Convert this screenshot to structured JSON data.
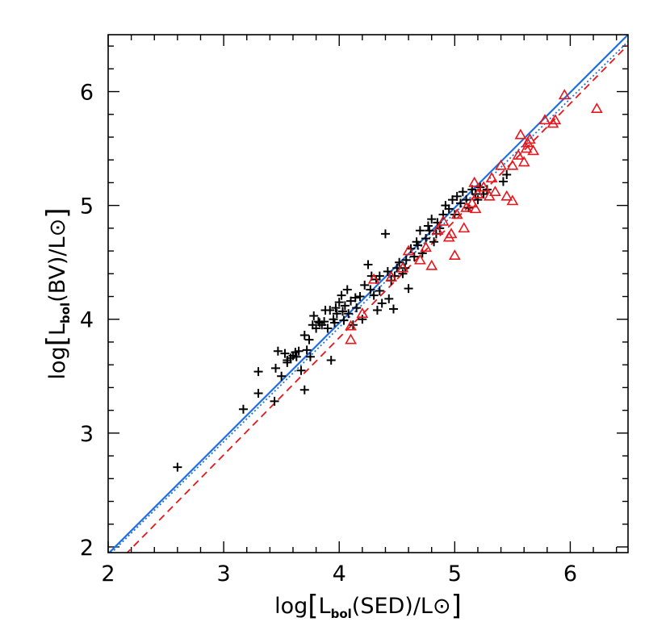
{
  "chart_data": {
    "type": "scatter",
    "xlim": [
      2,
      6.5
    ],
    "ylim": [
      1.95,
      6.5
    ],
    "x_ticks": [
      "2",
      "3",
      "4",
      "5",
      "6"
    ],
    "y_ticks": [
      "2",
      "3",
      "4",
      "5",
      "6"
    ],
    "xlabel": {
      "prefix": "log",
      "L": "L",
      "sub": "bol",
      "mid": "(SED)/L",
      "sun": "⊙"
    },
    "ylabel": {
      "prefix": "log",
      "L": "L",
      "sub": "bol",
      "mid": "(BV)/L",
      "sun": "⊙"
    },
    "grid": false,
    "colors": {
      "series_black": "#000000",
      "series_red": "#e8161c",
      "fit_blue": "#1f6fe0",
      "fit_red": "#e8161c"
    },
    "series": [
      {
        "marker": "plus",
        "color": "#000000",
        "points": [
          [
            2.6,
            2.7
          ],
          [
            3.17,
            3.21
          ],
          [
            3.3,
            3.35
          ],
          [
            3.3,
            3.54
          ],
          [
            3.44,
            3.28
          ],
          [
            3.45,
            3.57
          ],
          [
            3.47,
            3.72
          ],
          [
            3.5,
            3.5
          ],
          [
            3.53,
            3.7
          ],
          [
            3.55,
            3.64
          ],
          [
            3.58,
            3.66
          ],
          [
            3.6,
            3.68
          ],
          [
            3.62,
            3.71
          ],
          [
            3.65,
            3.72
          ],
          [
            3.67,
            3.55
          ],
          [
            3.7,
            3.38
          ],
          [
            3.7,
            3.86
          ],
          [
            3.72,
            3.73
          ],
          [
            3.75,
            3.67
          ],
          [
            3.77,
            3.95
          ],
          [
            3.78,
            4.03
          ],
          [
            3.8,
            3.92
          ],
          [
            3.83,
            3.97
          ],
          [
            3.85,
            3.95
          ],
          [
            3.87,
            3.98
          ],
          [
            3.9,
            3.92
          ],
          [
            3.92,
            4.08
          ],
          [
            3.93,
            3.64
          ],
          [
            3.95,
            4.0
          ],
          [
            3.97,
            4.1
          ],
          [
            3.98,
            4.05
          ],
          [
            4.0,
            4.15
          ],
          [
            4.02,
            4.21
          ],
          [
            4.03,
            4.07
          ],
          [
            4.05,
            4.12
          ],
          [
            4.07,
            4.26
          ],
          [
            4.08,
            4.05
          ],
          [
            4.1,
            4.16
          ],
          [
            4.12,
            3.95
          ],
          [
            4.15,
            4.1
          ],
          [
            4.18,
            4.2
          ],
          [
            4.2,
            4.0
          ],
          [
            4.22,
            4.3
          ],
          [
            4.25,
            4.48
          ],
          [
            4.27,
            4.26
          ],
          [
            4.3,
            4.21
          ],
          [
            4.32,
            4.35
          ],
          [
            4.33,
            4.08
          ],
          [
            4.35,
            4.38
          ],
          [
            4.37,
            4.14
          ],
          [
            4.4,
            4.75
          ],
          [
            4.42,
            4.42
          ],
          [
            4.43,
            4.18
          ],
          [
            4.45,
            4.34
          ],
          [
            4.47,
            4.09
          ],
          [
            4.5,
            4.45
          ],
          [
            4.52,
            4.5
          ],
          [
            4.55,
            4.4
          ],
          [
            4.58,
            4.52
          ],
          [
            4.6,
            4.27
          ],
          [
            4.62,
            4.62
          ],
          [
            4.65,
            4.55
          ],
          [
            4.67,
            4.68
          ],
          [
            4.7,
            4.78
          ],
          [
            4.72,
            4.58
          ],
          [
            4.75,
            4.71
          ],
          [
            4.77,
            4.82
          ],
          [
            4.8,
            4.88
          ],
          [
            4.82,
            4.68
          ],
          [
            4.85,
            4.85
          ],
          [
            4.87,
            4.8
          ],
          [
            4.9,
            4.92
          ],
          [
            4.92,
            5.0
          ],
          [
            4.95,
            4.97
          ],
          [
            4.98,
            5.05
          ],
          [
            5.0,
            4.92
          ],
          [
            5.02,
            5.08
          ],
          [
            5.05,
            5.02
          ],
          [
            5.07,
            5.12
          ],
          [
            5.1,
            5.05
          ],
          [
            5.12,
            4.98
          ],
          [
            5.15,
            5.14
          ],
          [
            5.18,
            5.1
          ],
          [
            5.2,
            5.05
          ],
          [
            5.22,
            5.16
          ],
          [
            5.25,
            5.1
          ],
          [
            5.28,
            5.14
          ],
          [
            5.42,
            5.21
          ],
          [
            5.45,
            5.27
          ],
          [
            3.55,
            3.62
          ],
          [
            3.63,
            3.67
          ],
          [
            3.74,
            3.82
          ],
          [
            3.82,
            3.98
          ],
          [
            3.88,
            4.08
          ],
          [
            3.96,
            3.97
          ],
          [
            4.04,
            3.99
          ],
          [
            4.14,
            4.19
          ],
          [
            4.28,
            4.38
          ],
          [
            4.35,
            4.25
          ],
          [
            4.48,
            4.38
          ],
          [
            4.57,
            4.45
          ],
          [
            4.68,
            4.65
          ],
          [
            4.78,
            4.78
          ],
          [
            4.84,
            4.75
          ]
        ]
      },
      {
        "marker": "triangle",
        "color": "#e8161c",
        "points": [
          [
            4.1,
            3.82
          ],
          [
            4.1,
            3.94
          ],
          [
            4.2,
            4.05
          ],
          [
            4.3,
            4.35
          ],
          [
            4.45,
            4.37
          ],
          [
            4.55,
            4.45
          ],
          [
            4.6,
            4.6
          ],
          [
            4.7,
            4.52
          ],
          [
            4.75,
            4.63
          ],
          [
            4.8,
            4.47
          ],
          [
            4.85,
            4.78
          ],
          [
            4.9,
            4.86
          ],
          [
            4.95,
            4.72
          ],
          [
            4.97,
            4.75
          ],
          [
            5.0,
            4.56
          ],
          [
            5.02,
            4.92
          ],
          [
            5.08,
            4.8
          ],
          [
            5.1,
            4.98
          ],
          [
            5.15,
            5.02
          ],
          [
            5.17,
            5.2
          ],
          [
            5.18,
            4.97
          ],
          [
            5.2,
            5.1
          ],
          [
            5.25,
            5.16
          ],
          [
            5.3,
            5.08
          ],
          [
            5.32,
            5.24
          ],
          [
            5.35,
            5.12
          ],
          [
            5.4,
            5.35
          ],
          [
            5.45,
            5.08
          ],
          [
            5.5,
            5.04
          ],
          [
            5.5,
            5.35
          ],
          [
            5.55,
            5.44
          ],
          [
            5.57,
            5.62
          ],
          [
            5.6,
            5.38
          ],
          [
            5.62,
            5.5
          ],
          [
            5.63,
            5.55
          ],
          [
            5.65,
            5.58
          ],
          [
            5.68,
            5.48
          ],
          [
            5.78,
            5.75
          ],
          [
            5.85,
            5.72
          ],
          [
            5.87,
            5.75
          ],
          [
            5.95,
            5.97
          ],
          [
            6.23,
            5.85
          ]
        ]
      }
    ],
    "lines": [
      {
        "style": "solid",
        "color": "#1f6fe0",
        "x": [
          2.0,
          6.5
        ],
        "y": [
          1.94,
          6.5
        ]
      },
      {
        "style": "dotted",
        "color": "#1f6fe0",
        "x": [
          2.0,
          6.5
        ],
        "y": [
          1.92,
          6.44
        ]
      },
      {
        "style": "dashed",
        "color": "#e8161c",
        "x": [
          2.0,
          6.5
        ],
        "y": [
          1.78,
          6.41
        ]
      }
    ]
  }
}
